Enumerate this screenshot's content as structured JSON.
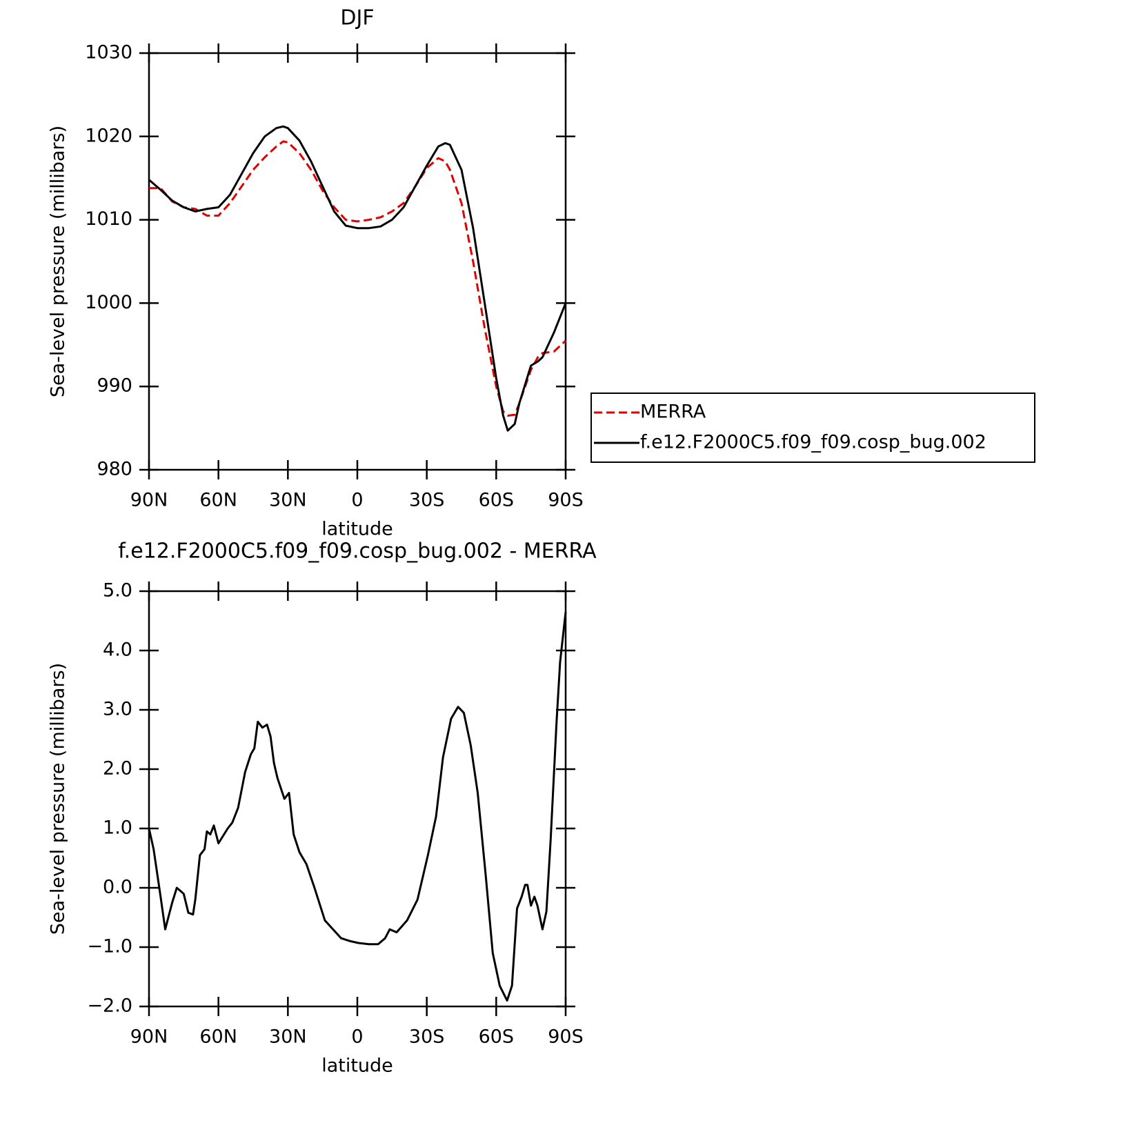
{
  "chart_data": [
    {
      "type": "line",
      "title": "DJF",
      "xlabel": "latitude",
      "ylabel": "Sea-level pressure (millibars)",
      "x": [
        90,
        85,
        80,
        75,
        70,
        65,
        60,
        55,
        50,
        45,
        40,
        35,
        32,
        30,
        25,
        20,
        15,
        10,
        5,
        0,
        -5,
        -10,
        -15,
        -20,
        -25,
        -30,
        -35,
        -38,
        -40,
        -45,
        -50,
        -55,
        -60,
        -63,
        -65,
        -68,
        -70,
        -75,
        -78,
        -80,
        -85,
        -90
      ],
      "series": [
        {
          "name": "MERRA",
          "color": "#e00000",
          "dashed": true,
          "values": [
            1013.8,
            1013.8,
            1012.2,
            1011.5,
            1011.3,
            1010.5,
            1010.5,
            1012.0,
            1014.0,
            1016.0,
            1017.5,
            1018.8,
            1019.4,
            1019.3,
            1018.0,
            1016.0,
            1013.5,
            1011.5,
            1010.0,
            1009.8,
            1010.0,
            1010.3,
            1011.0,
            1012.0,
            1014.0,
            1016.2,
            1017.4,
            1017.0,
            1016.0,
            1012.0,
            1005.0,
            997.0,
            990.0,
            987.0,
            986.5,
            986.6,
            988.0,
            992.0,
            993.5,
            994.0,
            994.2,
            995.5
          ]
        },
        {
          "name": "f.e12.F2000C5.f09_f09.cosp_bug.002",
          "color": "#000000",
          "dashed": false,
          "values": [
            1014.8,
            1013.6,
            1012.3,
            1011.5,
            1011.0,
            1011.3,
            1011.5,
            1013.0,
            1015.5,
            1018.0,
            1020.0,
            1021.0,
            1021.2,
            1021.0,
            1019.5,
            1017.0,
            1014.0,
            1011.0,
            1009.3,
            1009.0,
            1009.0,
            1009.2,
            1010.0,
            1011.5,
            1014.0,
            1016.5,
            1018.8,
            1019.2,
            1019.0,
            1016.0,
            1009.0,
            1000.0,
            991.0,
            986.5,
            984.7,
            985.5,
            988.0,
            992.5,
            993.0,
            993.5,
            996.5,
            1000.0
          ]
        }
      ],
      "xlim": [
        90,
        -90
      ],
      "xticks": [
        {
          "value": 90,
          "label": "90N"
        },
        {
          "value": 60,
          "label": "60N"
        },
        {
          "value": 30,
          "label": "30N"
        },
        0,
        {
          "value": -30,
          "label": "30S"
        },
        {
          "value": -60,
          "label": "60S"
        },
        {
          "value": -90,
          "label": "90S"
        }
      ],
      "ylim": [
        980,
        1030
      ],
      "yticks": [
        980,
        990,
        1000,
        1010,
        1020,
        1030
      ],
      "legend": "outside-right"
    },
    {
      "type": "line",
      "title": "f.e12.F2000C5.f09_f09.cosp_bug.002 - MERRA",
      "xlabel": "latitude",
      "ylabel": "Sea-level pressure (millibars)",
      "x": [
        90,
        88,
        85,
        83,
        80,
        78,
        75,
        73,
        71,
        70,
        68,
        66,
        65,
        63.5,
        62,
        60,
        56,
        54,
        51.5,
        48.5,
        46,
        44.5,
        43,
        41,
        39,
        37.5,
        36,
        34.5,
        31.5,
        29.5,
        27.5,
        25,
        22,
        18.5,
        14,
        10.5,
        7,
        3,
        -0.5,
        -5,
        -9,
        -12,
        -14,
        -17,
        -21.5,
        -26,
        -30.5,
        -34,
        -37,
        -40.5,
        -43.5,
        -46,
        -49,
        -52,
        -55.5,
        -58.5,
        -61.5,
        -64.7,
        -66.8,
        -69,
        -71,
        -72.5,
        -73.5,
        -75,
        -76.5,
        -77.8,
        -80,
        -81.7,
        -83.5,
        -86,
        -87.6,
        -90
      ],
      "values": [
        1.0,
        0.65,
        -0.15,
        -0.7,
        -0.25,
        0.0,
        -0.1,
        -0.42,
        -0.45,
        -0.2,
        0.55,
        0.65,
        0.95,
        0.9,
        1.05,
        0.75,
        1.0,
        1.1,
        1.35,
        1.95,
        2.25,
        2.35,
        2.8,
        2.7,
        2.75,
        2.55,
        2.1,
        1.85,
        1.5,
        1.6,
        0.9,
        0.6,
        0.4,
        0.0,
        -0.55,
        -0.7,
        -0.85,
        -0.9,
        -0.93,
        -0.95,
        -0.95,
        -0.85,
        -0.7,
        -0.75,
        -0.55,
        -0.2,
        0.55,
        1.2,
        2.2,
        2.85,
        3.05,
        2.95,
        2.4,
        1.6,
        0.2,
        -1.1,
        -1.65,
        -1.9,
        -1.65,
        -0.35,
        -0.15,
        0.05,
        0.05,
        -0.3,
        -0.15,
        -0.3,
        -0.7,
        -0.4,
        0.8,
        2.75,
        3.8,
        4.65
      ],
      "color": "#000000",
      "xlim": [
        90,
        -90
      ],
      "xticks": [
        {
          "value": 90,
          "label": "90N"
        },
        {
          "value": 60,
          "label": "60N"
        },
        {
          "value": 30,
          "label": "30N"
        },
        0,
        {
          "value": -30,
          "label": "30S"
        },
        {
          "value": -60,
          "label": "60S"
        },
        {
          "value": -90,
          "label": "90S"
        }
      ],
      "ylim": [
        -2,
        5
      ],
      "yticks": [
        {
          "value": -2,
          "label": "−2.0"
        },
        {
          "value": -1,
          "label": "−1.0"
        },
        {
          "value": 0,
          "label": "0.0"
        },
        {
          "value": 1,
          "label": "1.0"
        },
        {
          "value": 2,
          "label": "2.0"
        },
        {
          "value": 3,
          "label": "3.0"
        },
        {
          "value": 4,
          "label": "4.0"
        },
        {
          "value": 5,
          "label": "5.0"
        }
      ]
    }
  ]
}
